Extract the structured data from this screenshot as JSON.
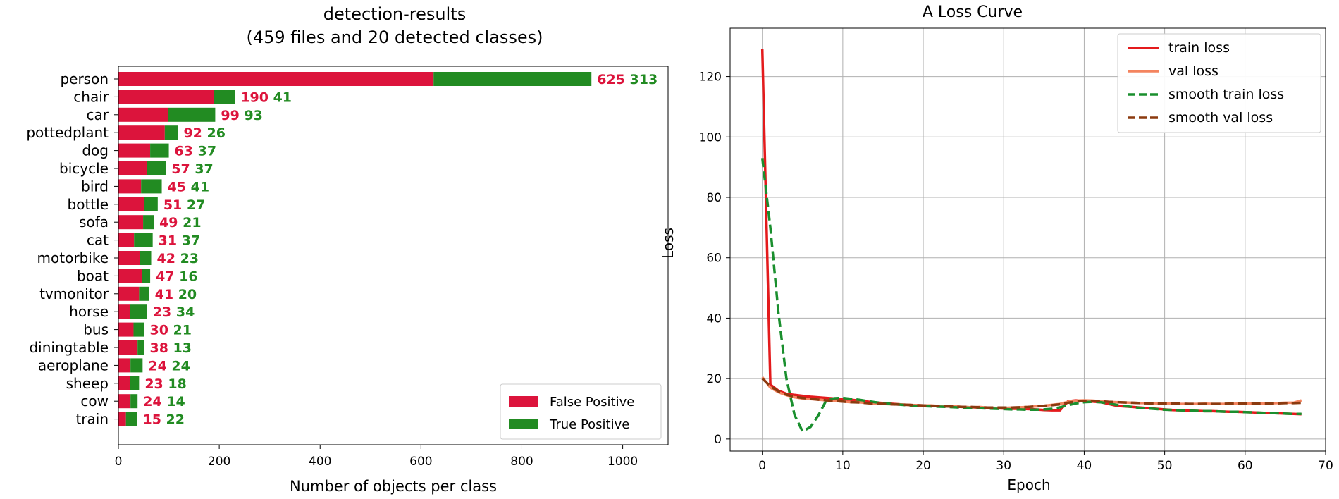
{
  "chart_data": [
    {
      "type": "bar",
      "stacked": true,
      "orientation": "horizontal",
      "title_line1": "detection-results",
      "title_line2": "(459 files and 20 detected classes)",
      "xlabel": "Number of objects per class",
      "xlim": [
        0,
        1090
      ],
      "xticks": [
        0,
        200,
        400,
        600,
        800,
        1000
      ],
      "categories": [
        "person",
        "chair",
        "car",
        "pottedplant",
        "dog",
        "bicycle",
        "bird",
        "bottle",
        "sofa",
        "cat",
        "motorbike",
        "boat",
        "tvmonitor",
        "horse",
        "bus",
        "diningtable",
        "aeroplane",
        "sheep",
        "cow",
        "train"
      ],
      "series": [
        {
          "name": "False Positive",
          "color": "#dc143c",
          "values": [
            625,
            190,
            99,
            92,
            63,
            57,
            45,
            51,
            49,
            31,
            42,
            47,
            41,
            23,
            30,
            38,
            24,
            23,
            24,
            15
          ]
        },
        {
          "name": "True Positive",
          "color": "#228b22",
          "values": [
            313,
            41,
            93,
            26,
            37,
            37,
            41,
            27,
            21,
            37,
            23,
            16,
            20,
            34,
            21,
            13,
            24,
            18,
            14,
            22
          ]
        }
      ],
      "legend": [
        "False Positive",
        "True Positive"
      ],
      "legend_position": "lower-right",
      "grid": false
    },
    {
      "type": "line",
      "title": "A Loss Curve",
      "xlabel": "Epoch",
      "ylabel": "Loss",
      "xlim": [
        -4,
        70
      ],
      "ylim": [
        -4,
        136
      ],
      "xticks": [
        0,
        10,
        20,
        30,
        40,
        50,
        60,
        70
      ],
      "yticks": [
        0,
        20,
        40,
        60,
        80,
        100,
        120
      ],
      "grid": true,
      "legend_position": "upper-right",
      "series": [
        {
          "name": "train loss",
          "color": "#e41a1c",
          "dash": "solid",
          "x": [
            0,
            1,
            2,
            3,
            4,
            5,
            6,
            7,
            8,
            9,
            10,
            11,
            12,
            13,
            14,
            15,
            16,
            17,
            18,
            19,
            20,
            21,
            22,
            23,
            24,
            25,
            26,
            27,
            28,
            29,
            30,
            31,
            32,
            33,
            34,
            35,
            36,
            37,
            38,
            39,
            40,
            41,
            42,
            43,
            44,
            45,
            46,
            47,
            48,
            49,
            50,
            51,
            52,
            53,
            54,
            55,
            56,
            57,
            58,
            59,
            60,
            61,
            62,
            63,
            64,
            65,
            66,
            67
          ],
          "y": [
            129,
            18,
            16,
            15,
            14.6,
            14.3,
            14,
            13.8,
            13.6,
            13.4,
            13.2,
            13,
            12.7,
            12.4,
            12.1,
            11.9,
            11.7,
            11.5,
            11.3,
            11.2,
            11.1,
            11,
            10.9,
            10.8,
            10.7,
            10.6,
            10.5,
            10.4,
            10.3,
            10.2,
            10.1,
            10,
            10,
            9.9,
            9.8,
            9.6,
            9.5,
            9.5,
            12.5,
            12.8,
            12.6,
            12.4,
            12.2,
            11.6,
            11,
            10.8,
            10.6,
            10.4,
            10.2,
            10,
            9.8,
            9.6,
            9.5,
            9.4,
            9.3,
            9.2,
            9.2,
            9.1,
            9,
            9,
            8.9,
            8.8,
            8.7,
            8.6,
            8.5,
            8.4,
            8.3,
            8.2
          ]
        },
        {
          "name": "val loss",
          "color": "#f4845f",
          "dash": "solid",
          "x": [
            0,
            1,
            2,
            3,
            4,
            5,
            6,
            7,
            8,
            9,
            10,
            11,
            12,
            13,
            14,
            15,
            16,
            17,
            18,
            19,
            20,
            21,
            22,
            23,
            24,
            25,
            26,
            27,
            28,
            29,
            30,
            31,
            32,
            33,
            34,
            35,
            36,
            37,
            38,
            39,
            40,
            41,
            42,
            43,
            44,
            45,
            46,
            47,
            48,
            49,
            50,
            51,
            52,
            53,
            54,
            55,
            56,
            57,
            58,
            59,
            60,
            61,
            62,
            63,
            64,
            65,
            66,
            67
          ],
          "y": [
            20.5,
            17,
            15.5,
            14.5,
            13.8,
            13.4,
            13.2,
            13,
            12.8,
            12.6,
            12.4,
            12.2,
            12.2,
            11.9,
            11.7,
            11.6,
            11.5,
            11.5,
            11.3,
            11.2,
            11.1,
            11.1,
            10.9,
            10.8,
            10.8,
            10.6,
            10.5,
            10.6,
            10.4,
            10.3,
            10.3,
            10.4,
            10.5,
            10.6,
            10.8,
            11,
            11.3,
            11.6,
            12.3,
            12.7,
            12.8,
            12.7,
            12.5,
            12.3,
            12.2,
            12.1,
            12,
            11.9,
            11.9,
            11.8,
            11.7,
            11.7,
            11.6,
            11.6,
            11.6,
            11.7,
            11.6,
            11.6,
            11.6,
            11.7,
            11.7,
            11.8,
            11.8,
            11.8,
            11.9,
            12,
            12,
            12.8
          ]
        },
        {
          "name": "smooth train loss",
          "color": "#1a8f2e",
          "dash": "dashed",
          "x": [
            0,
            1,
            2,
            3,
            4,
            5,
            6,
            7,
            8,
            9,
            10,
            11,
            12,
            13,
            14,
            15,
            16,
            17,
            18,
            19,
            20,
            21,
            22,
            23,
            24,
            25,
            26,
            27,
            28,
            29,
            30,
            31,
            32,
            33,
            34,
            35,
            36,
            37,
            38,
            39,
            40,
            41,
            42,
            43,
            44,
            45,
            46,
            47,
            48,
            49,
            50,
            51,
            52,
            53,
            54,
            55,
            56,
            57,
            58,
            59,
            60,
            61,
            62,
            63,
            64,
            65,
            66,
            67
          ],
          "y": [
            93,
            70,
            42,
            20,
            8,
            2.5,
            4,
            8,
            13,
            13.5,
            13.6,
            13.3,
            13,
            12.6,
            12.2,
            11.9,
            11.6,
            11.4,
            11.2,
            11,
            10.9,
            10.8,
            10.7,
            10.6,
            10.5,
            10.4,
            10.3,
            10.2,
            10.1,
            10,
            9.9,
            9.8,
            9.8,
            9.7,
            9.7,
            9.8,
            10,
            10.5,
            11.2,
            11.8,
            12.2,
            12.3,
            12.2,
            11.8,
            11.3,
            10.9,
            10.6,
            10.3,
            10.1,
            9.9,
            9.7,
            9.6,
            9.5,
            9.4,
            9.3,
            9.2,
            9.2,
            9.1,
            9,
            9,
            8.9,
            8.8,
            8.7,
            8.6,
            8.5,
            8.4,
            8.3,
            8.3
          ]
        },
        {
          "name": "smooth val loss",
          "color": "#8b3a0f",
          "dash": "dashed",
          "x": [
            0,
            1,
            2,
            3,
            4,
            5,
            6,
            7,
            8,
            9,
            10,
            11,
            12,
            13,
            14,
            15,
            16,
            17,
            18,
            19,
            20,
            21,
            22,
            23,
            24,
            25,
            26,
            27,
            28,
            29,
            30,
            31,
            32,
            33,
            34,
            35,
            36,
            37,
            38,
            39,
            40,
            41,
            42,
            43,
            44,
            45,
            46,
            47,
            48,
            49,
            50,
            51,
            52,
            53,
            54,
            55,
            56,
            57,
            58,
            59,
            60,
            61,
            62,
            63,
            64,
            65,
            66,
            67
          ],
          "y": [
            20,
            17.5,
            15.8,
            14.7,
            14,
            13.6,
            13.3,
            13,
            12.8,
            12.6,
            12.4,
            12.2,
            12.1,
            11.9,
            11.7,
            11.6,
            11.5,
            11.4,
            11.3,
            11.2,
            11.1,
            11,
            10.9,
            10.8,
            10.7,
            10.6,
            10.6,
            10.5,
            10.4,
            10.4,
            10.4,
            10.4,
            10.5,
            10.6,
            10.8,
            11,
            11.2,
            11.5,
            12,
            12.4,
            12.6,
            12.6,
            12.5,
            12.3,
            12.2,
            12.1,
            12,
            11.9,
            11.8,
            11.8,
            11.7,
            11.7,
            11.7,
            11.6,
            11.6,
            11.6,
            11.6,
            11.6,
            11.7,
            11.7,
            11.7,
            11.7,
            11.8,
            11.8,
            11.8,
            11.9,
            11.9,
            12
          ]
        }
      ]
    }
  ]
}
